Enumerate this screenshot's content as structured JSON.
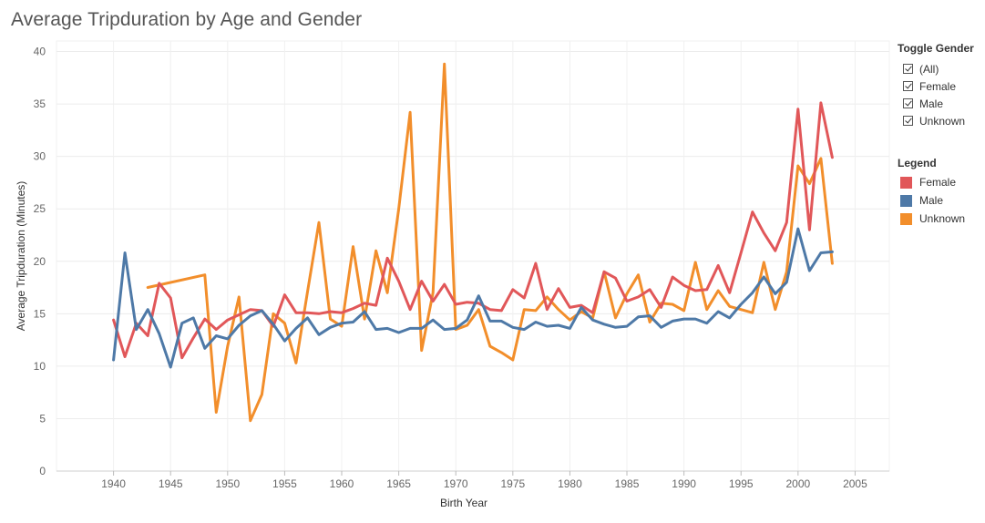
{
  "chart_data": {
    "type": "line",
    "title": "Average Tripduration by Age and Gender",
    "xlabel": "Birth Year",
    "ylabel": "Average Tripduration (Minutes)",
    "xlim": [
      1935,
      2008
    ],
    "ylim": [
      0,
      40
    ],
    "xticks": [
      1940,
      1945,
      1950,
      1955,
      1960,
      1965,
      1970,
      1975,
      1980,
      1985,
      1990,
      1995,
      2000,
      2005
    ],
    "yticks": [
      0,
      5,
      10,
      15,
      20,
      25,
      30,
      35,
      40
    ],
    "grid": true,
    "series": [
      {
        "name": "Female",
        "color": "#e15759",
        "points": [
          [
            1940,
            14.4
          ],
          [
            1941,
            10.9
          ],
          [
            1942,
            14.1
          ],
          [
            1943,
            12.9
          ],
          [
            1944,
            17.9
          ],
          [
            1945,
            16.5
          ],
          [
            1946,
            10.8
          ],
          [
            1947,
            12.7
          ],
          [
            1948,
            14.5
          ],
          [
            1949,
            13.5
          ],
          [
            1950,
            14.4
          ],
          [
            1951,
            14.9
          ],
          [
            1952,
            15.4
          ],
          [
            1953,
            15.3
          ],
          [
            1954,
            13.8
          ],
          [
            1955,
            16.8
          ],
          [
            1956,
            15.1
          ],
          [
            1957,
            15.1
          ],
          [
            1958,
            15.0
          ],
          [
            1959,
            15.2
          ],
          [
            1960,
            15.1
          ],
          [
            1961,
            15.5
          ],
          [
            1962,
            16.0
          ],
          [
            1963,
            15.8
          ],
          [
            1964,
            20.3
          ],
          [
            1965,
            18.1
          ],
          [
            1966,
            15.4
          ],
          [
            1967,
            18.1
          ],
          [
            1968,
            16.2
          ],
          [
            1969,
            17.8
          ],
          [
            1970,
            15.9
          ],
          [
            1971,
            16.1
          ],
          [
            1972,
            16.0
          ],
          [
            1973,
            15.4
          ],
          [
            1974,
            15.3
          ],
          [
            1975,
            17.3
          ],
          [
            1976,
            16.5
          ],
          [
            1977,
            19.8
          ],
          [
            1978,
            15.4
          ],
          [
            1979,
            17.4
          ],
          [
            1980,
            15.6
          ],
          [
            1981,
            15.8
          ],
          [
            1982,
            15.1
          ],
          [
            1983,
            19.0
          ],
          [
            1984,
            18.4
          ],
          [
            1985,
            16.2
          ],
          [
            1986,
            16.6
          ],
          [
            1987,
            17.3
          ],
          [
            1988,
            15.6
          ],
          [
            1989,
            18.5
          ],
          [
            1990,
            17.7
          ],
          [
            1991,
            17.2
          ],
          [
            1992,
            17.3
          ],
          [
            1993,
            19.6
          ],
          [
            1994,
            17.0
          ],
          [
            1995,
            20.8
          ],
          [
            1996,
            24.7
          ],
          [
            1997,
            22.7
          ],
          [
            1998,
            21.0
          ],
          [
            1999,
            23.7
          ],
          [
            2000,
            34.5
          ],
          [
            2001,
            23.0
          ],
          [
            2002,
            35.1
          ],
          [
            2003,
            29.9
          ]
        ]
      },
      {
        "name": "Male",
        "color": "#4e79a7",
        "points": [
          [
            1940,
            10.6
          ],
          [
            1941,
            20.8
          ],
          [
            1942,
            13.5
          ],
          [
            1943,
            15.4
          ],
          [
            1944,
            13.1
          ],
          [
            1945,
            9.9
          ],
          [
            1946,
            14.1
          ],
          [
            1947,
            14.6
          ],
          [
            1948,
            11.7
          ],
          [
            1949,
            12.9
          ],
          [
            1950,
            12.6
          ],
          [
            1951,
            13.9
          ],
          [
            1952,
            14.8
          ],
          [
            1953,
            15.3
          ],
          [
            1954,
            14.0
          ],
          [
            1955,
            12.4
          ],
          [
            1956,
            13.6
          ],
          [
            1957,
            14.6
          ],
          [
            1958,
            13.0
          ],
          [
            1959,
            13.7
          ],
          [
            1960,
            14.1
          ],
          [
            1961,
            14.2
          ],
          [
            1962,
            15.2
          ],
          [
            1963,
            13.5
          ],
          [
            1964,
            13.6
          ],
          [
            1965,
            13.2
          ],
          [
            1966,
            13.6
          ],
          [
            1967,
            13.6
          ],
          [
            1968,
            14.4
          ],
          [
            1969,
            13.5
          ],
          [
            1970,
            13.6
          ],
          [
            1971,
            14.4
          ],
          [
            1972,
            16.7
          ],
          [
            1973,
            14.3
          ],
          [
            1974,
            14.3
          ],
          [
            1975,
            13.7
          ],
          [
            1976,
            13.5
          ],
          [
            1977,
            14.2
          ],
          [
            1978,
            13.8
          ],
          [
            1979,
            13.9
          ],
          [
            1980,
            13.6
          ],
          [
            1981,
            15.6
          ],
          [
            1982,
            14.4
          ],
          [
            1983,
            14.0
          ],
          [
            1984,
            13.7
          ],
          [
            1985,
            13.8
          ],
          [
            1986,
            14.7
          ],
          [
            1987,
            14.8
          ],
          [
            1988,
            13.7
          ],
          [
            1989,
            14.3
          ],
          [
            1990,
            14.5
          ],
          [
            1991,
            14.5
          ],
          [
            1992,
            14.1
          ],
          [
            1993,
            15.2
          ],
          [
            1994,
            14.6
          ],
          [
            1995,
            15.9
          ],
          [
            1996,
            17.0
          ],
          [
            1997,
            18.5
          ],
          [
            1998,
            16.9
          ],
          [
            1999,
            18.0
          ],
          [
            2000,
            23.1
          ],
          [
            2001,
            19.1
          ],
          [
            2002,
            20.8
          ],
          [
            2003,
            20.9
          ]
        ]
      },
      {
        "name": "Unknown",
        "color": "#f28e2b",
        "points": [
          [
            1943,
            17.5
          ],
          [
            1948,
            18.7
          ],
          [
            1949,
            5.6
          ],
          [
            1950,
            11.9
          ],
          [
            1951,
            16.6
          ],
          [
            1952,
            4.8
          ],
          [
            1953,
            7.3
          ],
          [
            1954,
            15.0
          ],
          [
            1955,
            14.1
          ],
          [
            1956,
            10.3
          ],
          [
            1957,
            17.1
          ],
          [
            1958,
            23.7
          ],
          [
            1959,
            14.5
          ],
          [
            1960,
            13.8
          ],
          [
            1961,
            21.4
          ],
          [
            1962,
            14.5
          ],
          [
            1963,
            21.0
          ],
          [
            1964,
            17.0
          ],
          [
            1965,
            25.0
          ],
          [
            1966,
            34.2
          ],
          [
            1967,
            11.5
          ],
          [
            1968,
            17.0
          ],
          [
            1969,
            38.8
          ],
          [
            1970,
            13.5
          ],
          [
            1971,
            13.9
          ],
          [
            1972,
            15.4
          ],
          [
            1973,
            11.9
          ],
          [
            1974,
            11.3
          ],
          [
            1975,
            10.6
          ],
          [
            1976,
            15.4
          ],
          [
            1977,
            15.3
          ],
          [
            1978,
            16.6
          ],
          [
            1979,
            15.4
          ],
          [
            1980,
            14.4
          ],
          [
            1981,
            15.2
          ],
          [
            1982,
            14.6
          ],
          [
            1983,
            19.0
          ],
          [
            1984,
            14.6
          ],
          [
            1985,
            16.9
          ],
          [
            1986,
            18.7
          ],
          [
            1987,
            14.2
          ],
          [
            1988,
            16.0
          ],
          [
            1989,
            15.9
          ],
          [
            1990,
            15.3
          ],
          [
            1991,
            19.9
          ],
          [
            1992,
            15.4
          ],
          [
            1993,
            17.2
          ],
          [
            1994,
            15.7
          ],
          [
            1995,
            15.4
          ],
          [
            1996,
            15.1
          ],
          [
            1997,
            19.9
          ],
          [
            1998,
            15.4
          ],
          [
            1999,
            19.0
          ],
          [
            2000,
            29.1
          ],
          [
            2001,
            27.4
          ],
          [
            2002,
            29.8
          ],
          [
            2003,
            19.8
          ]
        ]
      }
    ]
  },
  "toggle": {
    "title": "Toggle Gender",
    "items": [
      {
        "label": "(All)",
        "checked": true
      },
      {
        "label": "Female",
        "checked": true
      },
      {
        "label": "Male",
        "checked": true
      },
      {
        "label": "Unknown",
        "checked": true
      }
    ]
  },
  "legend": {
    "title": "Legend",
    "items": [
      {
        "label": "Female",
        "color": "#e15759"
      },
      {
        "label": "Male",
        "color": "#4e79a7"
      },
      {
        "label": "Unknown",
        "color": "#f28e2b"
      }
    ]
  }
}
